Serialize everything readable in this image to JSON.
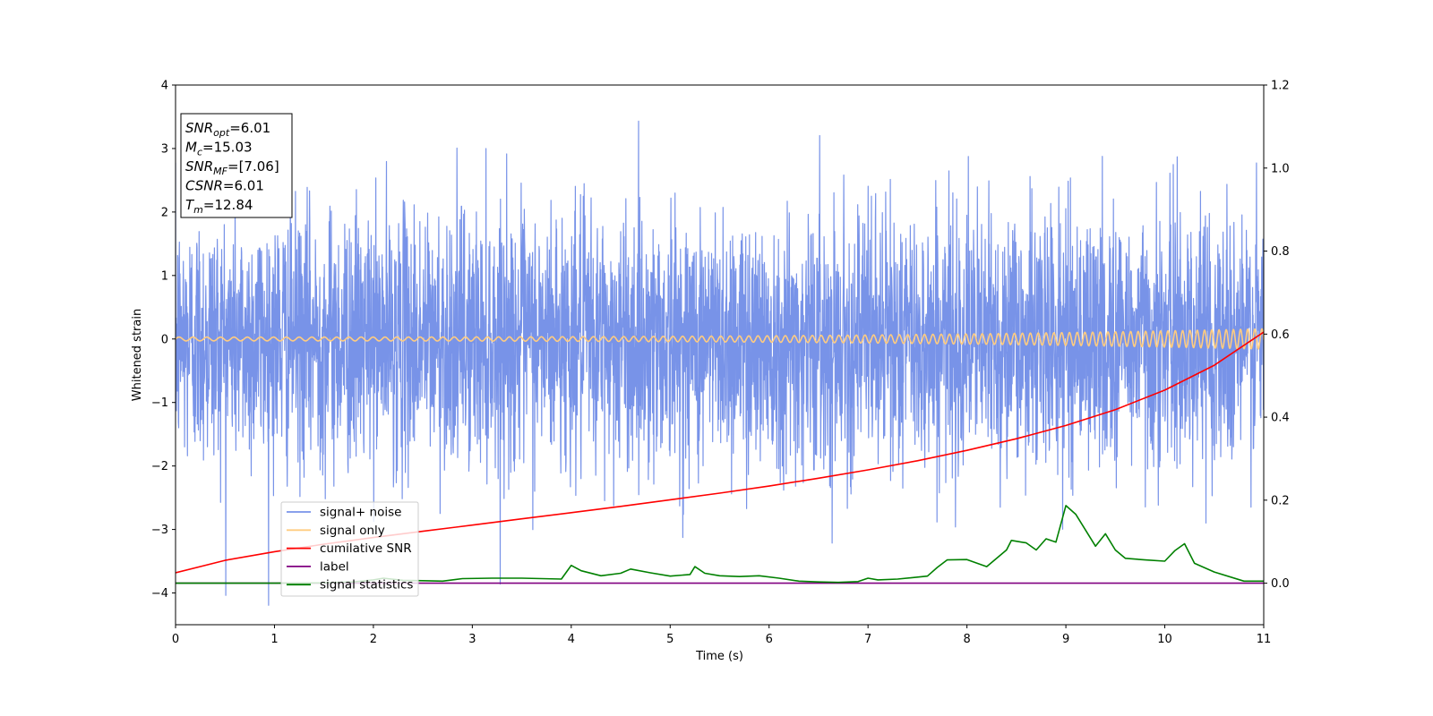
{
  "chart_data": {
    "type": "line",
    "xlabel": "Time (s)",
    "ylabel": "Whitened strain",
    "xlim": [
      0,
      11
    ],
    "ylim": [
      -4.5,
      4
    ],
    "y2lim": [
      -0.1,
      1.2
    ],
    "x_ticks": [
      0,
      1,
      2,
      3,
      4,
      5,
      6,
      7,
      8,
      9,
      10,
      11
    ],
    "y_ticks": [
      -4,
      -3,
      -2,
      -1,
      0,
      1,
      2,
      3,
      4
    ],
    "y2_ticks": [
      0.0,
      0.2,
      0.4,
      0.6,
      0.8,
      1.0,
      1.2
    ],
    "x_tick_labels": [
      "0",
      "1",
      "2",
      "3",
      "4",
      "5",
      "6",
      "7",
      "8",
      "9",
      "10",
      "11"
    ],
    "y_tick_labels": [
      "−4",
      "−3",
      "−2",
      "−1",
      "0",
      "1",
      "2",
      "3",
      "4"
    ],
    "y2_tick_labels": [
      "0.0",
      "0.2",
      "0.4",
      "0.6",
      "0.8",
      "1.0",
      "1.2"
    ],
    "grid": false,
    "legend_position": "lower-left",
    "annotation": {
      "lines": [
        {
          "base": "SNR",
          "sub": "opt",
          "rest": "=6.01"
        },
        {
          "base": "M",
          "sub": "c",
          "rest": "=15.03"
        },
        {
          "base": "SNR",
          "sub": "MF",
          "rest": "=[7.06]"
        },
        {
          "base": "CSNR",
          "sub": "",
          "rest": "=6.01"
        },
        {
          "base": "T",
          "sub": "m",
          "rest": "=12.84"
        }
      ]
    },
    "series": [
      {
        "name": "signal+ noise",
        "color": "#7893e8",
        "axis": "left",
        "kind": "noise",
        "std": 1.0,
        "tmin": 0,
        "tmax": 11
      },
      {
        "name": "signal only",
        "color": "#ffcc80",
        "axis": "left",
        "kind": "chirp",
        "tmin": 0,
        "tmax": 11,
        "amp_start": 0.03,
        "amp_end": 0.16,
        "freq_start": 7,
        "freq_end": 14
      },
      {
        "name": "cumilative SNR",
        "color": "#ff0000",
        "axis": "right",
        "x": [
          0,
          0.5,
          1,
          1.5,
          2,
          2.5,
          3,
          3.5,
          4,
          4.5,
          5,
          5.5,
          6,
          6.5,
          7,
          7.5,
          8,
          8.5,
          9,
          9.5,
          10,
          10.5,
          11
        ],
        "y": [
          0.025,
          0.055,
          0.076,
          0.094,
          0.11,
          0.125,
          0.14,
          0.155,
          0.17,
          0.185,
          0.201,
          0.217,
          0.234,
          0.253,
          0.273,
          0.295,
          0.32,
          0.348,
          0.38,
          0.418,
          0.465,
          0.525,
          0.605
        ]
      },
      {
        "name": "label",
        "color": "#800080",
        "axis": "right",
        "x": [
          0,
          11
        ],
        "y": [
          0.0,
          0.0
        ]
      },
      {
        "name": "signal statistics",
        "color": "#008000",
        "axis": "right",
        "x": [
          0,
          0.5,
          1,
          1.5,
          1.8,
          2.0,
          2.1,
          2.3,
          2.5,
          2.7,
          2.9,
          3.2,
          3.5,
          3.9,
          4.0,
          4.1,
          4.3,
          4.5,
          4.6,
          4.8,
          5.0,
          5.2,
          5.25,
          5.35,
          5.5,
          5.7,
          5.9,
          6.1,
          6.3,
          6.5,
          6.7,
          6.9,
          7.0,
          7.1,
          7.3,
          7.6,
          7.7,
          7.8,
          8.0,
          8.2,
          8.4,
          8.45,
          8.6,
          8.7,
          8.8,
          8.9,
          9.0,
          9.1,
          9.3,
          9.4,
          9.5,
          9.6,
          9.8,
          10.0,
          10.1,
          10.2,
          10.3,
          10.5,
          10.8,
          11
        ],
        "y": [
          0.0,
          0.0,
          0.0,
          0.001,
          0.003,
          0.008,
          0.012,
          0.007,
          0.006,
          0.005,
          0.011,
          0.012,
          0.012,
          0.01,
          0.043,
          0.03,
          0.018,
          0.024,
          0.034,
          0.025,
          0.017,
          0.021,
          0.04,
          0.024,
          0.018,
          0.016,
          0.018,
          0.012,
          0.005,
          0.003,
          0.002,
          0.004,
          0.012,
          0.008,
          0.01,
          0.017,
          0.038,
          0.056,
          0.057,
          0.04,
          0.08,
          0.103,
          0.097,
          0.08,
          0.107,
          0.099,
          0.187,
          0.166,
          0.089,
          0.119,
          0.08,
          0.06,
          0.056,
          0.053,
          0.078,
          0.095,
          0.048,
          0.027,
          0.005,
          0.005
        ]
      }
    ]
  }
}
